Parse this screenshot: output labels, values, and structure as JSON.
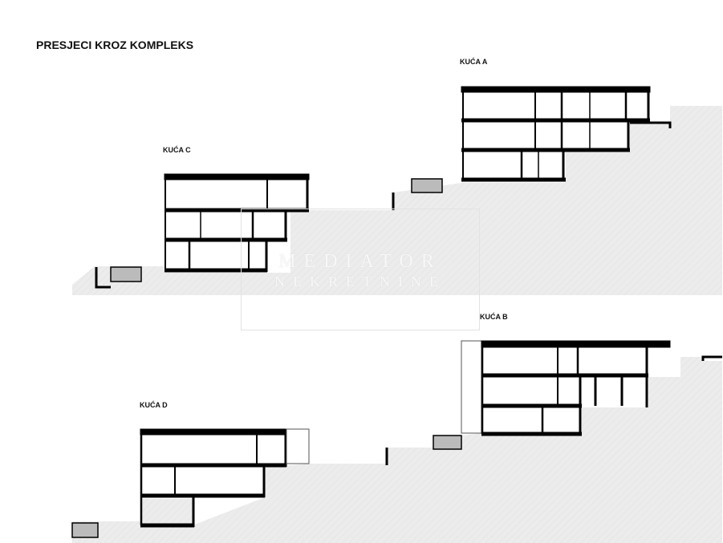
{
  "title": "PRESJECI KROZ KOMPLEKS",
  "houses": [
    {
      "label": "KUĆA A"
    },
    {
      "label": "KUĆA B"
    },
    {
      "label": "KUĆA C"
    },
    {
      "label": "KUĆA D"
    }
  ],
  "watermark": {
    "line1": "MEDIATOR",
    "line2": "NEKRETNINE"
  },
  "colors": {
    "terrain": "#ececec",
    "structure": "#000000",
    "outline": "#555555"
  }
}
